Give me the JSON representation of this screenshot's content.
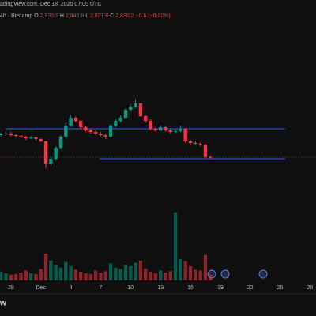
{
  "chart_data": {
    "type": "candlestick",
    "source_line": "adingView.com, Dec 18, 2025 07:05 UTC",
    "symbol_line": "4h · Bitstamp",
    "ohlc_labels": [
      {
        "key": "O",
        "value": "2,830.9"
      },
      {
        "key": "H",
        "value": "2,840.8"
      },
      {
        "key": "L",
        "value": "2,821.8"
      },
      {
        "key": "C",
        "value": "2,830.2"
      }
    ],
    "change_label": "−0.6 (−0.02%)",
    "logo": "w",
    "up_color": "#089981",
    "down_color": "#f23645",
    "x": [
      0,
      0.5,
      1,
      1.5,
      2,
      2.5,
      3,
      3.5,
      4,
      4.5,
      5,
      5.5,
      6,
      6.5,
      7,
      7.5,
      8,
      8.5,
      9,
      9.5,
      10,
      10.5,
      11,
      11.5,
      12,
      12.5,
      13,
      13.5,
      14,
      14.5,
      15,
      15.5,
      16,
      16.5,
      17,
      17.5,
      18,
      18.5,
      19,
      19.5,
      20,
      20.5,
      21
    ],
    "open": [
      2970,
      2975,
      2980,
      2970,
      2965,
      2960,
      2950,
      2955,
      2945,
      2930,
      2790,
      2820,
      2890,
      2960,
      3030,
      3080,
      3060,
      3020,
      3000,
      2990,
      2980,
      2970,
      2960,
      3030,
      3060,
      3080,
      3130,
      3150,
      3170,
      3090,
      3060,
      3010,
      3000,
      3020,
      3000,
      2990,
      2995,
      3010,
      2930,
      2920,
      2915,
      2910,
      2830.9
    ],
    "high": [
      2985,
      2990,
      2990,
      2975,
      2970,
      2965,
      2965,
      2960,
      2950,
      2935,
      2830,
      2900,
      2970,
      3045,
      3095,
      3090,
      3065,
      3025,
      3010,
      3000,
      2990,
      2980,
      3040,
      3070,
      3095,
      3140,
      3165,
      3200,
      3175,
      3095,
      3070,
      3020,
      3030,
      3025,
      3005,
      3005,
      3030,
      3015,
      2940,
      2935,
      2925,
      2915,
      2840.8
    ],
    "low": [
      2960,
      2965,
      2960,
      2955,
      2950,
      2940,
      2945,
      2935,
      2925,
      2760,
      2775,
      2810,
      2880,
      2950,
      3020,
      3050,
      3010,
      2990,
      2980,
      2970,
      2960,
      2945,
      2955,
      3020,
      3050,
      3075,
      3120,
      3140,
      3085,
      3050,
      3000,
      2990,
      2995,
      2990,
      2980,
      2985,
      2990,
      2920,
      2905,
      2905,
      2900,
      2825,
      2821.8
    ],
    "close": [
      2975,
      2980,
      2970,
      2965,
      2960,
      2950,
      2955,
      2945,
      2930,
      2790,
      2820,
      2890,
      2960,
      3030,
      3080,
      3060,
      3020,
      3000,
      2990,
      2980,
      2970,
      2960,
      3030,
      3060,
      3080,
      3130,
      3150,
      3170,
      3090,
      3060,
      3010,
      3000,
      3020,
      3000,
      2990,
      2995,
      3010,
      2930,
      2920,
      2915,
      2910,
      2831,
      2830.2
    ],
    "volume": [
      12,
      10,
      8,
      9,
      11,
      14,
      10,
      9,
      16,
      38,
      28,
      22,
      18,
      26,
      20,
      15,
      12,
      10,
      9,
      14,
      11,
      13,
      24,
      18,
      16,
      22,
      20,
      25,
      28,
      17,
      12,
      10,
      14,
      11,
      13,
      96,
      30,
      27,
      20,
      15,
      14,
      36,
      8
    ],
    "ylim": [
      2600,
      3600
    ],
    "volume_lim": [
      0,
      100
    ],
    "xlim": [
      -0.1,
      31.6
    ],
    "xticks": [
      {
        "value": 1,
        "label": "28"
      },
      {
        "value": 4,
        "label": "Dec"
      },
      {
        "value": 7,
        "label": "4"
      },
      {
        "value": 10,
        "label": "7"
      },
      {
        "value": 13,
        "label": "10"
      },
      {
        "value": 16,
        "label": "13"
      },
      {
        "value": 19,
        "label": "16"
      },
      {
        "value": 22,
        "label": "19"
      },
      {
        "value": 25,
        "label": "22"
      },
      {
        "value": 28,
        "label": "25"
      },
      {
        "value": 31,
        "label": "28"
      }
    ],
    "hlines": [
      {
        "value": 3010,
        "from": 0.5,
        "to": 28.5,
        "color": "#2962ff"
      },
      {
        "value": 2820,
        "from": 9.9,
        "to": 28.5,
        "color": "#2962ff"
      }
    ],
    "price_line": 2830.2
  }
}
